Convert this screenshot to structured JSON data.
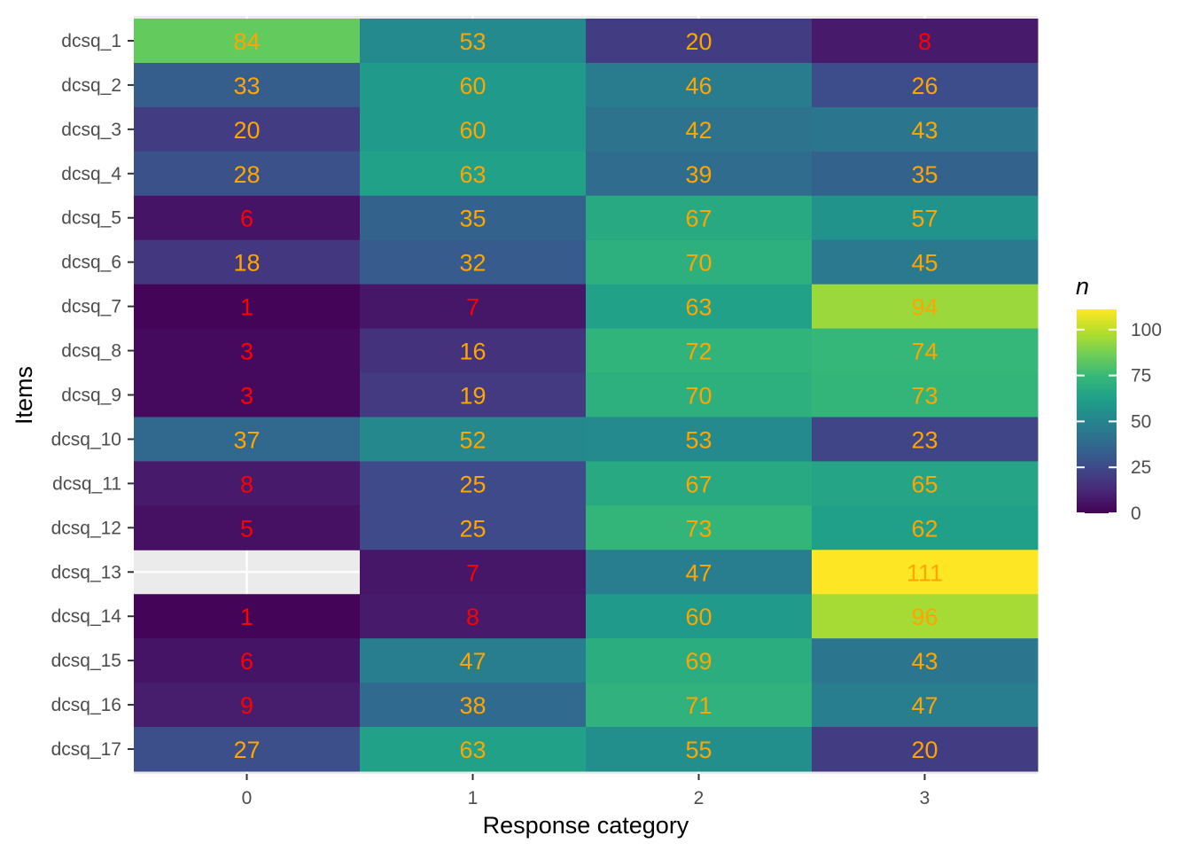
{
  "chart_data": {
    "type": "heatmap",
    "title": "",
    "xlabel": "Response category",
    "ylabel": "Items",
    "x_categories": [
      "0",
      "1",
      "2",
      "3"
    ],
    "y_categories": [
      "dcsq_1",
      "dcsq_2",
      "dcsq_3",
      "dcsq_4",
      "dcsq_5",
      "dcsq_6",
      "dcsq_7",
      "dcsq_8",
      "dcsq_9",
      "dcsq_10",
      "dcsq_11",
      "dcsq_12",
      "dcsq_13",
      "dcsq_14",
      "dcsq_15",
      "dcsq_16",
      "dcsq_17"
    ],
    "values": [
      [
        84,
        53,
        20,
        8
      ],
      [
        33,
        60,
        46,
        26
      ],
      [
        20,
        60,
        42,
        43
      ],
      [
        28,
        63,
        39,
        35
      ],
      [
        6,
        35,
        67,
        57
      ],
      [
        18,
        32,
        70,
        45
      ],
      [
        1,
        7,
        63,
        94
      ],
      [
        3,
        16,
        72,
        74
      ],
      [
        3,
        19,
        70,
        73
      ],
      [
        37,
        52,
        53,
        23
      ],
      [
        8,
        25,
        67,
        65
      ],
      [
        5,
        25,
        73,
        62
      ],
      [
        null,
        7,
        47,
        111
      ],
      [
        1,
        8,
        60,
        96
      ],
      [
        6,
        47,
        69,
        43
      ],
      [
        9,
        38,
        71,
        47
      ],
      [
        27,
        63,
        55,
        20
      ]
    ],
    "color_scale": "viridis",
    "color_range": [
      0,
      111
    ],
    "low_label_color": "#ff0000",
    "high_label_color": "#ffa500",
    "label_color_threshold": 10,
    "missing_color": "#e5e5e5",
    "legend": {
      "title": "n",
      "position": "right",
      "ticks": [
        0,
        25,
        50,
        75,
        100
      ]
    },
    "grid": true
  }
}
